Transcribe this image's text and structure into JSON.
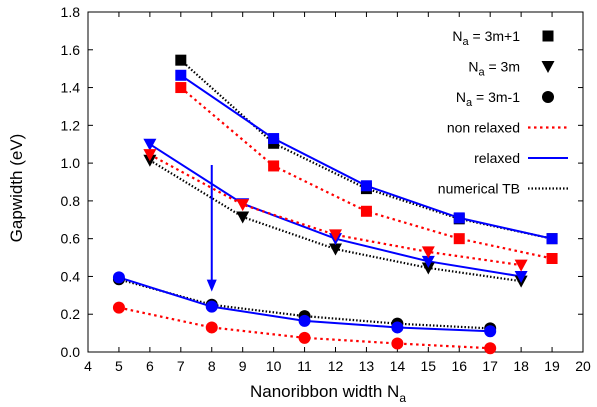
{
  "chart_data": {
    "type": "line",
    "title": "",
    "xlabel_main": "Nanoribbon width N",
    "xlabel_sub": "a",
    "ylabel": "Gapwidth (eV)",
    "xlim": [
      4,
      20
    ],
    "ylim": [
      0,
      1.8
    ],
    "xticks": [
      4,
      5,
      6,
      7,
      8,
      9,
      10,
      11,
      12,
      13,
      14,
      15,
      16,
      17,
      18,
      19,
      20
    ],
    "yticks": [
      0.0,
      0.2,
      0.4,
      0.6,
      0.8,
      1.0,
      1.2,
      1.4,
      1.6,
      1.8
    ],
    "ytick_labels": [
      "0.0",
      "0.2",
      "0.4",
      "0.6",
      "0.8",
      "1.0",
      "1.2",
      "1.4",
      "1.6",
      "1.8"
    ],
    "grid": false,
    "legend_position": "top-right",
    "legend": [
      {
        "main": "N",
        "sub": "a",
        "rest": " = 3m+1",
        "marker": "square"
      },
      {
        "main": "N",
        "sub": "a",
        "rest": " = 3m",
        "marker": "triangle-down"
      },
      {
        "main": "N",
        "sub": "a",
        "rest": " = 3m-1",
        "marker": "circle"
      },
      {
        "main": "non relaxed",
        "line": "dotted-red"
      },
      {
        "main": "relaxed",
        "line": "solid-blue"
      },
      {
        "main": "numerical TB",
        "line": "dotted-black"
      }
    ],
    "series": [
      {
        "family": "3m+1",
        "model": "numerical TB",
        "marker": "square",
        "color": "#000000",
        "x": [
          7,
          10,
          13,
          16,
          19
        ],
        "y": [
          1.545,
          1.105,
          0.865,
          0.705,
          0.6
        ]
      },
      {
        "family": "3m+1",
        "model": "relaxed",
        "marker": "square",
        "color": "#0000ff",
        "x": [
          7,
          10,
          13,
          16,
          19
        ],
        "y": [
          1.465,
          1.13,
          0.88,
          0.71,
          0.6
        ]
      },
      {
        "family": "3m+1",
        "model": "non relaxed",
        "marker": "square",
        "color": "#ff0000",
        "x": [
          7,
          10,
          13,
          16,
          19
        ],
        "y": [
          1.4,
          0.985,
          0.745,
          0.6,
          0.495
        ]
      },
      {
        "family": "3m",
        "model": "numerical TB",
        "marker": "triangle-down",
        "color": "#000000",
        "x": [
          6,
          9,
          12,
          15,
          18
        ],
        "y": [
          1.015,
          0.715,
          0.545,
          0.445,
          0.375
        ]
      },
      {
        "family": "3m",
        "model": "relaxed",
        "marker": "triangle-down",
        "color": "#0000ff",
        "x": [
          6,
          9,
          12,
          15,
          18
        ],
        "y": [
          1.1,
          0.785,
          0.6,
          0.48,
          0.4
        ]
      },
      {
        "family": "3m",
        "model": "non relaxed",
        "marker": "triangle-down",
        "color": "#ff0000",
        "x": [
          6,
          9,
          12,
          15,
          18
        ],
        "y": [
          1.045,
          0.78,
          0.62,
          0.53,
          0.46
        ]
      },
      {
        "family": "3m-1",
        "model": "numerical TB",
        "marker": "circle",
        "color": "#000000",
        "x": [
          5,
          8,
          11,
          14,
          17
        ],
        "y": [
          0.385,
          0.25,
          0.19,
          0.15,
          0.125
        ]
      },
      {
        "family": "3m-1",
        "model": "relaxed",
        "marker": "circle",
        "color": "#0000ff",
        "x": [
          5,
          8,
          11,
          14,
          17
        ],
        "y": [
          0.395,
          0.24,
          0.165,
          0.13,
          0.11
        ]
      },
      {
        "family": "3m-1",
        "model": "non relaxed",
        "marker": "circle",
        "color": "#ff0000",
        "x": [
          5,
          8,
          11,
          14,
          17
        ],
        "y": [
          0.235,
          0.13,
          0.075,
          0.045,
          0.02
        ]
      }
    ],
    "annotations": [
      {
        "type": "arrow",
        "color": "#0000ff",
        "x": 8,
        "y_start": 0.99,
        "y_end": 0.33
      }
    ]
  }
}
